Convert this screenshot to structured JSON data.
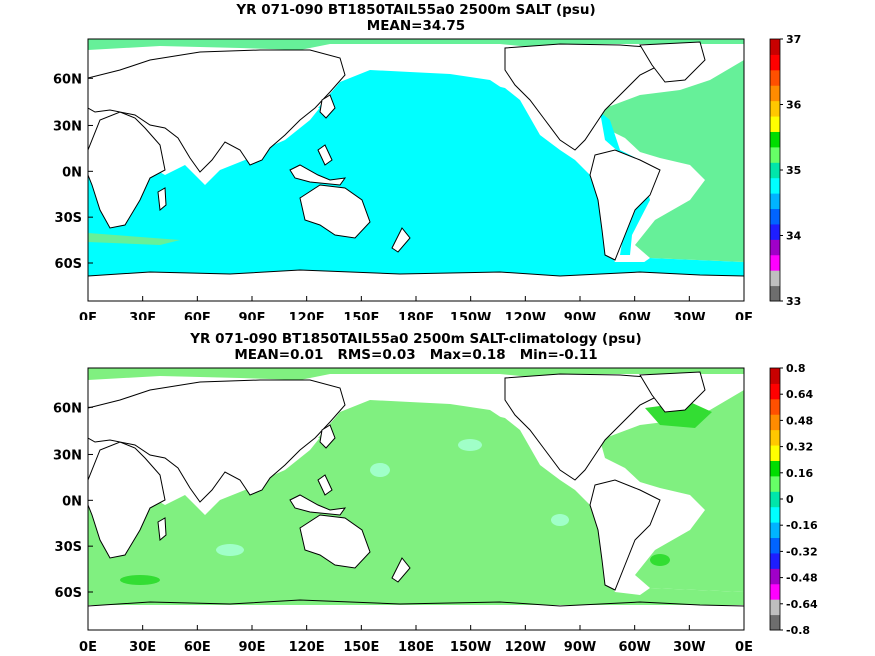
{
  "top_panel": {
    "title": "YR 071-090 BT1850TAIL55a0 2500m SALT (psu)",
    "subtitle": "MEAN=34.75",
    "colorbar_ticks": [
      "37",
      "36",
      "35",
      "34",
      "33"
    ],
    "colorbar_colors": [
      "#6e6e6e",
      "#bfbfbf",
      "#ff00ff",
      "#a000c8",
      "#1e1eff",
      "#0064ff",
      "#00b4ff",
      "#00ffff",
      "#00e6aa",
      "#66ff66",
      "#00dd00",
      "#ffff00",
      "#ffc800",
      "#ff8c00",
      "#ff5000",
      "#ff0000",
      "#c80000"
    ],
    "ocean_color": "#00ffff",
    "atlantic_color": "#66f099"
  },
  "bottom_panel": {
    "title": "YR 071-090 BT1850TAIL55a0 2500m SALT-climatology (psu)",
    "subtitle": "MEAN=0.01   RMS=0.03   Max=0.18   Min=-0.11",
    "colorbar_ticks": [
      "0.8",
      "0.64",
      "0.48",
      "0.32",
      "0.16",
      "0",
      "-0.16",
      "-0.32",
      "-0.48",
      "-0.64",
      "-0.8"
    ],
    "colorbar_colors": [
      "#6e6e6e",
      "#bfbfbf",
      "#ff00ff",
      "#a000c8",
      "#1e1eff",
      "#0064ff",
      "#00b4ff",
      "#00ffff",
      "#00e6aa",
      "#66ff66",
      "#00dd00",
      "#ffff00",
      "#ffc800",
      "#ff8c00",
      "#ff5000",
      "#ff0000",
      "#c80000"
    ],
    "ocean_color": "#80f080",
    "strong_color": "#33dd33"
  },
  "lat_labels": [
    "60N",
    "30N",
    "0N",
    "30S",
    "60S"
  ],
  "lon_labels": [
    "0E",
    "30E",
    "60E",
    "90E",
    "120E",
    "150E",
    "180E",
    "150W",
    "120W",
    "90W",
    "60W",
    "30W",
    "0E"
  ]
}
